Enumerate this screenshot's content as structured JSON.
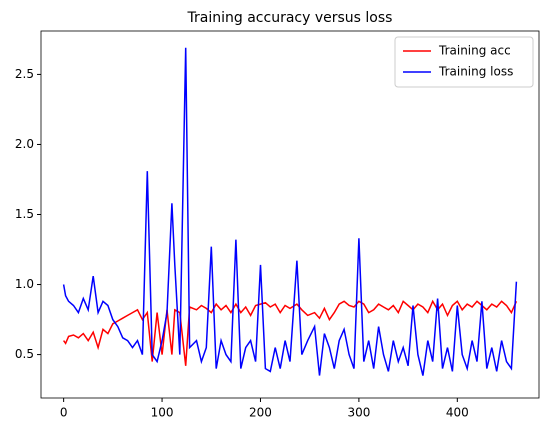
{
  "chart_data": {
    "type": "line",
    "title": "Training accuracy versus loss",
    "x": [
      0,
      2,
      5,
      10,
      15,
      20,
      25,
      30,
      35,
      40,
      45,
      50,
      55,
      60,
      65,
      70,
      75,
      80,
      85,
      90,
      95,
      100,
      105,
      110,
      113,
      118,
      124,
      128,
      135,
      140,
      145,
      150,
      155,
      160,
      165,
      170,
      175,
      180,
      185,
      190,
      195,
      200,
      205,
      210,
      215,
      220,
      225,
      230,
      237,
      242,
      248,
      255,
      260,
      265,
      270,
      275,
      280,
      285,
      290,
      295,
      300,
      305,
      310,
      315,
      320,
      325,
      330,
      335,
      340,
      345,
      350,
      355,
      360,
      365,
      370,
      375,
      380,
      385,
      390,
      395,
      400,
      405,
      410,
      415,
      420,
      425,
      430,
      435,
      440,
      445,
      450,
      455,
      460
    ],
    "series": [
      {
        "name": "Training acc",
        "color": "#ff0000",
        "values": [
          0.6,
          0.58,
          0.63,
          0.64,
          0.62,
          0.65,
          0.6,
          0.66,
          0.55,
          0.68,
          0.65,
          0.72,
          0.74,
          0.76,
          0.78,
          0.8,
          0.82,
          0.75,
          0.8,
          0.45,
          0.8,
          0.5,
          0.82,
          0.5,
          0.82,
          0.8,
          0.42,
          0.84,
          0.82,
          0.85,
          0.83,
          0.8,
          0.86,
          0.82,
          0.85,
          0.8,
          0.86,
          0.8,
          0.84,
          0.78,
          0.85,
          0.86,
          0.87,
          0.84,
          0.86,
          0.8,
          0.85,
          0.83,
          0.86,
          0.82,
          0.78,
          0.8,
          0.76,
          0.83,
          0.75,
          0.8,
          0.86,
          0.88,
          0.85,
          0.84,
          0.88,
          0.86,
          0.8,
          0.82,
          0.86,
          0.84,
          0.82,
          0.85,
          0.8,
          0.88,
          0.85,
          0.82,
          0.86,
          0.84,
          0.8,
          0.88,
          0.82,
          0.86,
          0.78,
          0.85,
          0.88,
          0.82,
          0.86,
          0.84,
          0.88,
          0.85,
          0.82,
          0.86,
          0.84,
          0.88,
          0.85,
          0.8,
          0.88
        ]
      },
      {
        "name": "Training loss",
        "color": "#0000ff",
        "values": [
          1.0,
          0.92,
          0.88,
          0.85,
          0.8,
          0.9,
          0.82,
          1.06,
          0.8,
          0.88,
          0.85,
          0.75,
          0.7,
          0.62,
          0.6,
          0.55,
          0.6,
          0.5,
          1.81,
          0.5,
          0.45,
          0.6,
          0.8,
          1.58,
          1.14,
          0.5,
          2.69,
          0.55,
          0.6,
          0.45,
          0.55,
          1.27,
          0.4,
          0.6,
          0.5,
          0.45,
          1.32,
          0.4,
          0.55,
          0.6,
          0.45,
          1.14,
          0.4,
          0.38,
          0.55,
          0.4,
          0.6,
          0.45,
          1.17,
          0.5,
          0.6,
          0.7,
          0.35,
          0.65,
          0.55,
          0.4,
          0.6,
          0.68,
          0.5,
          0.4,
          1.33,
          0.45,
          0.6,
          0.4,
          0.7,
          0.5,
          0.38,
          0.6,
          0.45,
          0.55,
          0.42,
          0.85,
          0.5,
          0.35,
          0.6,
          0.45,
          0.9,
          0.4,
          0.55,
          0.38,
          0.85,
          0.5,
          0.4,
          0.6,
          0.45,
          0.88,
          0.4,
          0.55,
          0.38,
          0.6,
          0.45,
          0.4,
          1.02
        ]
      }
    ],
    "xlim": [
      -23,
      483
    ],
    "xticks": [
      0,
      100,
      200,
      300,
      400
    ],
    "ylim": [
      0.19,
      2.81
    ],
    "yticks": [
      0.5,
      {
        "value": 1.0,
        "label": "1.0"
      },
      {
        "value": 1.5,
        "label": "1.5"
      },
      {
        "value": 2.0,
        "label": "2.0"
      },
      {
        "value": 2.5,
        "label": "2.5"
      }
    ],
    "legend": "upper right"
  }
}
